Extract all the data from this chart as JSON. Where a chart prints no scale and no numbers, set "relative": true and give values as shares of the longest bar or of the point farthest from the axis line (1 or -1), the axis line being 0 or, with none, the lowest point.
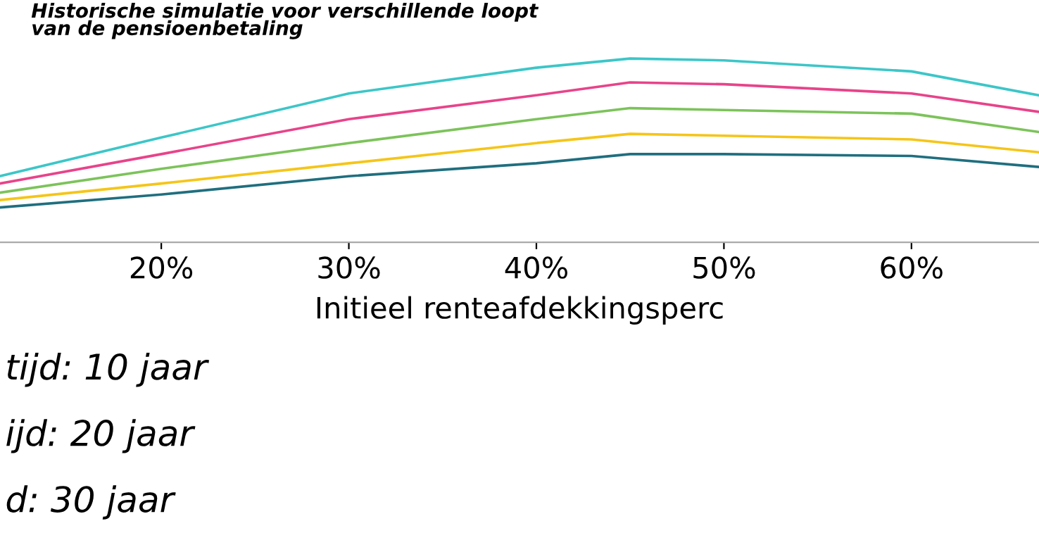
{
  "chart_data": {
    "type": "line",
    "title": "Historische simulatie voor verschillende loopt\nvan de pensioenbetaling",
    "xlabel": "Initieel renteafdekkingsperc",
    "x": [
      11.4,
      20,
      30,
      40,
      45,
      50,
      60,
      66.8
    ],
    "xlim": [
      11.4,
      66.8
    ],
    "xticks": [
      {
        "value": 20,
        "label": "20%"
      },
      {
        "value": 30,
        "label": "30%"
      },
      {
        "value": 40,
        "label": "40%"
      },
      {
        "value": 50,
        "label": "50%"
      },
      {
        "value": 60,
        "label": "60%"
      }
    ],
    "relative": true,
    "marker": "none",
    "line_style": "solid",
    "series": [
      {
        "color": "#3cc6c8",
        "values": [
          0.36,
          0.57,
          0.81,
          0.95,
          1.0,
          0.99,
          0.93,
          0.8
        ]
      },
      {
        "color": "#e8438a",
        "values": [
          0.32,
          0.48,
          0.67,
          0.8,
          0.87,
          0.86,
          0.81,
          0.71
        ]
      },
      {
        "color": "#7cc35a",
        "values": [
          0.27,
          0.4,
          0.54,
          0.67,
          0.73,
          0.72,
          0.7,
          0.6
        ]
      },
      {
        "color": "#f5c518",
        "values": [
          0.23,
          0.32,
          0.43,
          0.54,
          0.59,
          0.58,
          0.56,
          0.49
        ]
      },
      {
        "color": "#1f6f7f",
        "values": [
          0.19,
          0.26,
          0.36,
          0.43,
          0.48,
          0.48,
          0.47,
          0.41
        ]
      }
    ],
    "annotations": [
      "tijd: 10 jaar",
      "ijd: 20 jaar",
      "d: 30 jaar"
    ]
  }
}
